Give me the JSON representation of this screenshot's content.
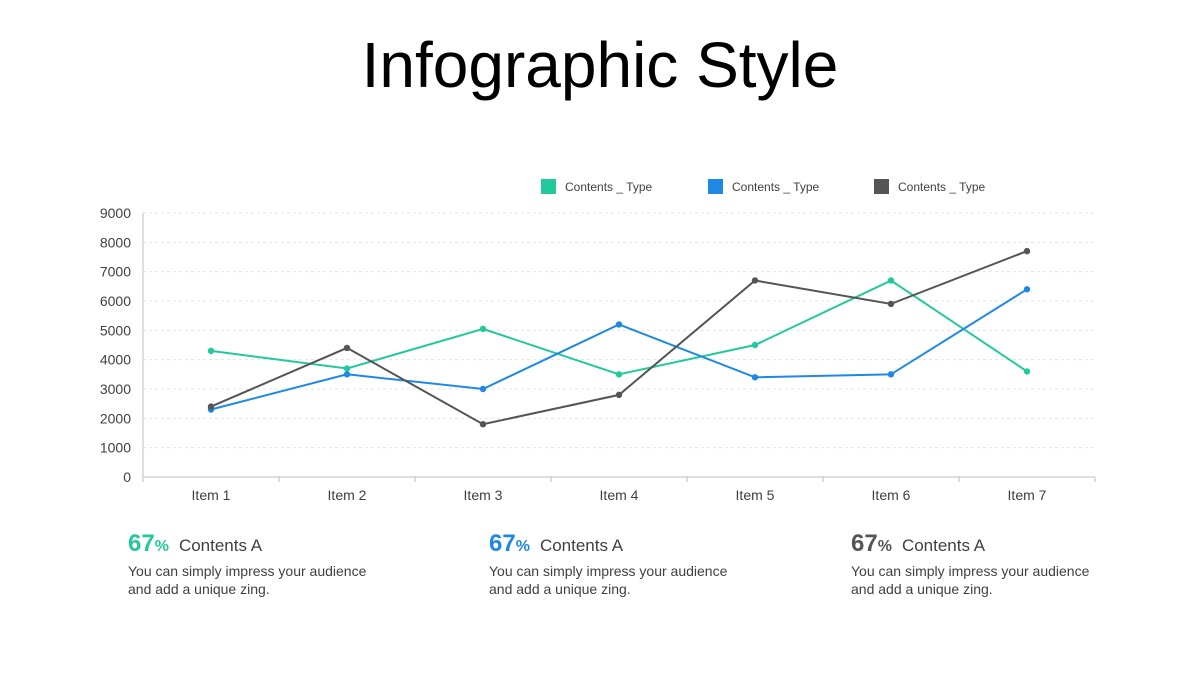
{
  "title": "Infographic Style",
  "chart_data": {
    "type": "line",
    "categories": [
      "Item 1",
      "Item 2",
      "Item 3",
      "Item 4",
      "Item 5",
      "Item 6",
      "Item 7"
    ],
    "ylim": [
      0,
      9000
    ],
    "yticks": [
      "0",
      "1000",
      "2000",
      "3000",
      "4000",
      "5000",
      "6000",
      "7000",
      "8000",
      "9000"
    ],
    "grid": true,
    "legend_position": "top-right",
    "series": [
      {
        "name": "Contents _ Type",
        "color": "#22c99c",
        "values": [
          4300,
          3700,
          5050,
          3500,
          4500,
          6700,
          3600
        ]
      },
      {
        "name": "Contents _ Type",
        "color": "#1e88e5",
        "values": [
          2300,
          3500,
          3000,
          5200,
          3400,
          3500,
          6400
        ]
      },
      {
        "name": "Contents _ Type",
        "color": "#555555",
        "values": [
          2400,
          4400,
          1800,
          2800,
          6700,
          5900,
          7700
        ]
      }
    ]
  },
  "stats": [
    {
      "value": "67",
      "unit": "%",
      "title": "Contents A",
      "description": "You can simply impress your audience and add a unique zing.",
      "color": "#22c99c"
    },
    {
      "value": "67",
      "unit": "%",
      "title": "Contents A",
      "description": "You can simply impress your audience and add a unique zing.",
      "color": "#1e88e5"
    },
    {
      "value": "67",
      "unit": "%",
      "title": "Contents A",
      "description": "You can simply impress your audience and add a unique zing.",
      "color": "#555555"
    }
  ]
}
